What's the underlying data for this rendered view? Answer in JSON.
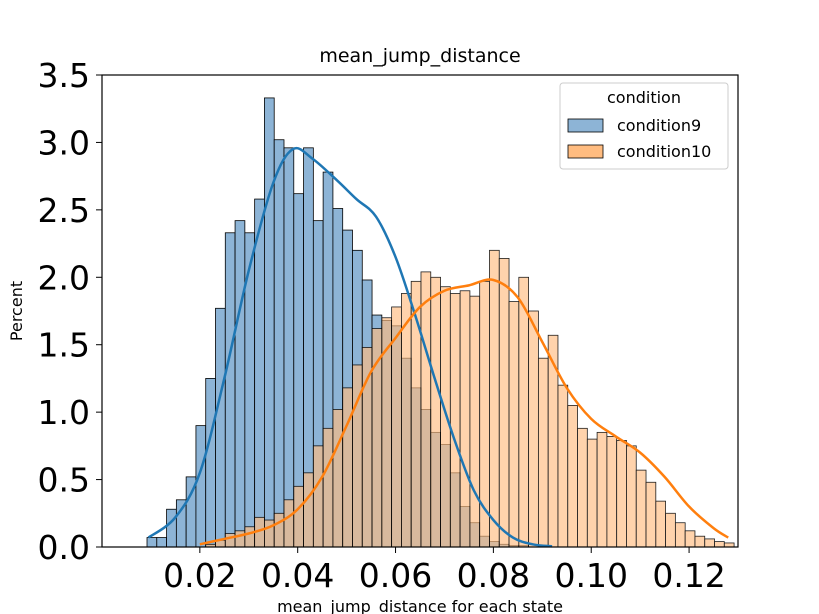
{
  "chart_data": {
    "type": "histogram",
    "title": "mean_jump_distance",
    "xlabel": "mean_jump_distance for each state",
    "ylabel": "Percent",
    "xlim": [
      0.0,
      0.13
    ],
    "ylim": [
      0,
      3.5
    ],
    "xticks": [
      0.02,
      0.04,
      0.06,
      0.08,
      0.1,
      0.12
    ],
    "xtick_labels": [
      "0.02",
      "0.04",
      "0.06",
      "0.08",
      "0.10",
      "0.12"
    ],
    "yticks": [
      0.0,
      0.5,
      1.0,
      1.5,
      2.0,
      2.5,
      3.0,
      3.5
    ],
    "ytick_labels": [
      "0.0",
      "0.5",
      "1.0",
      "1.5",
      "2.0",
      "2.5",
      "3.0",
      "3.5"
    ],
    "grid": false,
    "legend": {
      "title": "condition",
      "position": "top-right"
    },
    "bin_start": 0.0092,
    "bin_width": 0.002,
    "series": [
      {
        "name": "condition9",
        "color": "#1f77b4",
        "bar_fill": "#8db4d6",
        "values": [
          0.07,
          0.07,
          0.28,
          0.35,
          0.52,
          0.9,
          1.25,
          1.77,
          2.33,
          2.42,
          2.33,
          2.58,
          3.33,
          3.02,
          2.96,
          2.62,
          2.96,
          2.42,
          2.78,
          2.51,
          2.35,
          2.2,
          1.98,
          1.72,
          1.68,
          1.64,
          1.4,
          1.18,
          1.02,
          0.85,
          0.76,
          0.55,
          0.3,
          0.18,
          0.08,
          0.04,
          0.02,
          0.01,
          0.01,
          0,
          0,
          0,
          0,
          0,
          0,
          0,
          0,
          0,
          0,
          0,
          0,
          0,
          0,
          0,
          0,
          0,
          0,
          0,
          0,
          0
        ],
        "kde": [
          [
            0.0095,
            0.07
          ],
          [
            0.015,
            0.22
          ],
          [
            0.02,
            0.55
          ],
          [
            0.025,
            1.25
          ],
          [
            0.03,
            2.05
          ],
          [
            0.035,
            2.7
          ],
          [
            0.039,
            2.95
          ],
          [
            0.043,
            2.88
          ],
          [
            0.048,
            2.72
          ],
          [
            0.052,
            2.58
          ],
          [
            0.056,
            2.45
          ],
          [
            0.06,
            2.15
          ],
          [
            0.064,
            1.72
          ],
          [
            0.068,
            1.25
          ],
          [
            0.072,
            0.8
          ],
          [
            0.076,
            0.42
          ],
          [
            0.08,
            0.2
          ],
          [
            0.084,
            0.07
          ],
          [
            0.088,
            0.02
          ],
          [
            0.092,
            0.005
          ]
        ]
      },
      {
        "name": "condition10",
        "color": "#ff7f0e",
        "bar_fill": "#ffbc80",
        "values": [
          0,
          0,
          0,
          0,
          0,
          0,
          0.02,
          0.05,
          0.1,
          0.12,
          0.15,
          0.22,
          0.2,
          0.25,
          0.35,
          0.45,
          0.55,
          0.75,
          0.88,
          1.02,
          1.18,
          1.35,
          1.48,
          1.62,
          1.7,
          1.78,
          1.88,
          1.97,
          2.04,
          2.0,
          1.93,
          1.88,
          1.9,
          1.86,
          1.97,
          2.2,
          2.14,
          1.82,
          2.0,
          1.75,
          1.4,
          1.57,
          1.2,
          1.05,
          0.88,
          0.8,
          0.85,
          0.82,
          0.79,
          0.75,
          0.57,
          0.48,
          0.34,
          0.25,
          0.18,
          0.12,
          0.08,
          0.06,
          0.04,
          0.03
        ]
      }
    ],
    "kde10": [
      [
        0.02,
        0.02
      ],
      [
        0.025,
        0.06
      ],
      [
        0.03,
        0.1
      ],
      [
        0.035,
        0.16
      ],
      [
        0.04,
        0.28
      ],
      [
        0.045,
        0.52
      ],
      [
        0.05,
        0.9
      ],
      [
        0.055,
        1.3
      ],
      [
        0.06,
        1.55
      ],
      [
        0.065,
        1.78
      ],
      [
        0.07,
        1.9
      ],
      [
        0.075,
        1.94
      ],
      [
        0.08,
        1.98
      ],
      [
        0.085,
        1.85
      ],
      [
        0.09,
        1.52
      ],
      [
        0.095,
        1.18
      ],
      [
        0.1,
        0.95
      ],
      [
        0.105,
        0.82
      ],
      [
        0.11,
        0.7
      ],
      [
        0.115,
        0.52
      ],
      [
        0.12,
        0.3
      ],
      [
        0.125,
        0.14
      ],
      [
        0.128,
        0.07
      ]
    ]
  }
}
